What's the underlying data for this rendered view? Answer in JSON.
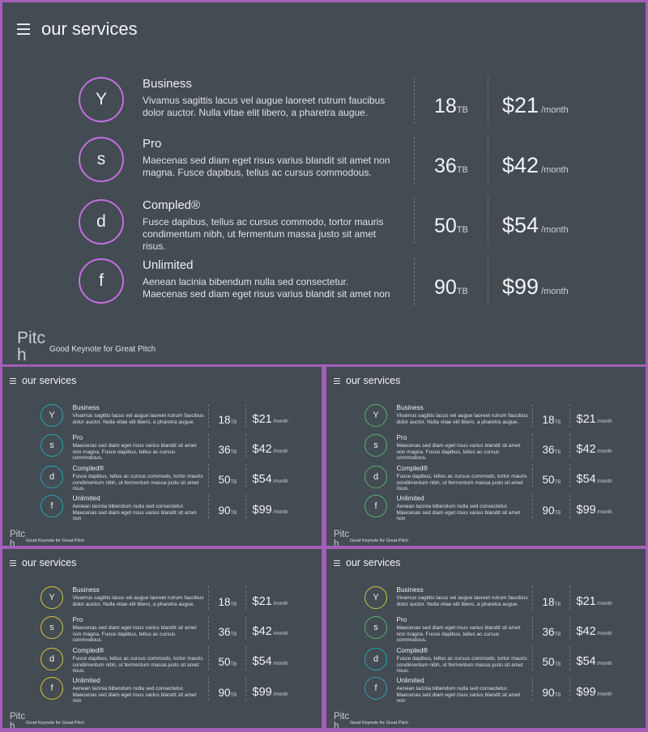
{
  "slide": {
    "title": "our services",
    "brand_line1": "Pitc",
    "brand_line2": "h",
    "tagline": "Good Keynote for Great Pitch",
    "unit_tb": "TB",
    "unit_month": "/month"
  },
  "services": [
    {
      "letter": "Y",
      "name": "Business",
      "desc": "Vivamus sagittis lacus vel augue laoreet rutrum faucibus dolor auctor. Nulla vitae elit libero, a pharetra augue.",
      "storage": "18",
      "price": "$21"
    },
    {
      "letter": "s",
      "name": "Pro",
      "desc": "Maecenas sed diam eget risus varius blandit sit amet non magna. Fusce dapibus, tellus ac cursus commodous.",
      "storage": "36",
      "price": "$42"
    },
    {
      "letter": "d",
      "name": "Compled®",
      "desc": "Fusce dapibus, tellus ac cursus commodo, tortor mauris condimentum nibh, ut fermentum massa justo sit amet risus.",
      "storage": "50",
      "price": "$54"
    },
    {
      "letter": "f",
      "name": "Unlimited",
      "desc": "Aenean lacinia bibendum nulla sed consectetur. Maecenas sed diam eget risus varius blandit sit amet non",
      "storage": "90",
      "price": "$99"
    }
  ],
  "variants": [
    {
      "id": "main",
      "circle_colors": [
        "#c36fe0",
        "#c36fe0",
        "#c36fe0",
        "#c36fe0"
      ]
    },
    {
      "id": "teal",
      "circle_colors": [
        "#27a7b3",
        "#27a7b3",
        "#27a7b3",
        "#27a7b3"
      ]
    },
    {
      "id": "green",
      "circle_colors": [
        "#56b06c",
        "#56b06c",
        "#56b06c",
        "#56b06c"
      ]
    },
    {
      "id": "yellow",
      "circle_colors": [
        "#d8c43c",
        "#d8c43c",
        "#d8c43c",
        "#d8c43c"
      ]
    },
    {
      "id": "gradient",
      "circle_colors": [
        "#c9c645",
        "#56b06c",
        "#27a7b3",
        "#3a9fb0"
      ]
    }
  ],
  "colors": {
    "frame": "#a45fb8",
    "slide_bg": "#434b53"
  }
}
